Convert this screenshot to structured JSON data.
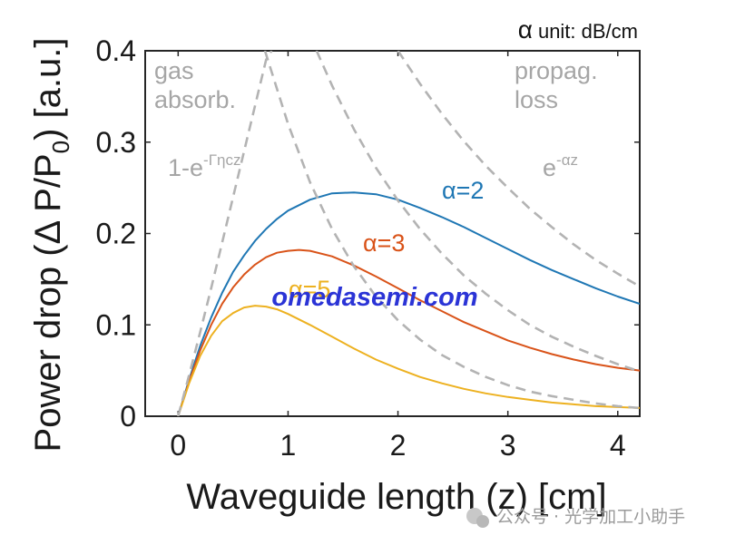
{
  "chart_data": {
    "type": "line",
    "title": "",
    "unit_note": {
      "symbol": "α",
      "text": "unit: dB/cm"
    },
    "xlabel": "Waveguide length (z) [cm]",
    "ylabel": {
      "prefix": "Power drop (Δ P/P",
      "sub": "0",
      "suffix": ") [a.u.]"
    },
    "xlim": [
      -0.3,
      4.2
    ],
    "ylim": [
      0,
      0.4
    ],
    "xticks": [
      0,
      1,
      2,
      3,
      4
    ],
    "yticks": [
      0,
      0.1,
      0.2,
      0.3,
      0.4
    ],
    "ytick_labels": [
      "0",
      "0.1",
      "0.2",
      "0.3",
      "0.4"
    ],
    "colors": {
      "a2": "#1f77b4",
      "a3": "#d95319",
      "a5": "#edb120",
      "dash": "#b3b3b3",
      "annotation": "#a6a6a6"
    },
    "series": [
      {
        "name": "α=2",
        "color": "#1f77b4",
        "x": [
          0,
          0.1,
          0.2,
          0.3,
          0.4,
          0.5,
          0.6,
          0.7,
          0.8,
          0.9,
          1.0,
          1.2,
          1.4,
          1.6,
          1.8,
          2.0,
          2.2,
          2.4,
          2.6,
          2.8,
          3.0,
          3.2,
          3.4,
          3.6,
          3.8,
          4.0,
          4.2
        ],
        "y": [
          0,
          0.04,
          0.077,
          0.108,
          0.135,
          0.158,
          0.176,
          0.192,
          0.205,
          0.216,
          0.225,
          0.237,
          0.244,
          0.245,
          0.243,
          0.237,
          0.228,
          0.218,
          0.207,
          0.195,
          0.183,
          0.171,
          0.16,
          0.15,
          0.14,
          0.131,
          0.123
        ]
      },
      {
        "name": "α=3",
        "color": "#d95319",
        "x": [
          0,
          0.1,
          0.2,
          0.3,
          0.4,
          0.5,
          0.6,
          0.7,
          0.8,
          0.9,
          1.0,
          1.1,
          1.2,
          1.4,
          1.6,
          1.8,
          2.0,
          2.2,
          2.4,
          2.6,
          2.8,
          3.0,
          3.2,
          3.4,
          3.6,
          3.8,
          4.0,
          4.2
        ],
        "y": [
          0,
          0.038,
          0.072,
          0.1,
          0.123,
          0.141,
          0.155,
          0.166,
          0.174,
          0.179,
          0.181,
          0.182,
          0.181,
          0.175,
          0.165,
          0.153,
          0.14,
          0.127,
          0.115,
          0.103,
          0.093,
          0.083,
          0.075,
          0.068,
          0.062,
          0.057,
          0.053,
          0.05
        ]
      },
      {
        "name": "α=5",
        "color": "#edb120",
        "x": [
          0,
          0.1,
          0.2,
          0.3,
          0.4,
          0.5,
          0.6,
          0.7,
          0.8,
          0.9,
          1.0,
          1.2,
          1.4,
          1.6,
          1.8,
          2.0,
          2.2,
          2.4,
          2.6,
          2.8,
          3.0,
          3.2,
          3.4,
          3.6,
          3.8,
          4.0,
          4.2
        ],
        "y": [
          0,
          0.036,
          0.066,
          0.088,
          0.104,
          0.113,
          0.119,
          0.121,
          0.12,
          0.117,
          0.112,
          0.1,
          0.087,
          0.074,
          0.062,
          0.052,
          0.043,
          0.036,
          0.03,
          0.025,
          0.021,
          0.018,
          0.015,
          0.013,
          0.011,
          0.01,
          0.009
        ]
      },
      {
        "name": "1-e^(-Γηcz)",
        "color": "#b3b3b3",
        "dashed": true,
        "x": [
          0,
          0.1,
          0.2,
          0.3,
          0.4,
          0.5,
          0.6,
          0.7,
          0.8,
          0.85
        ],
        "y": [
          0,
          0.045,
          0.092,
          0.14,
          0.19,
          0.24,
          0.29,
          0.34,
          0.39,
          0.4
        ]
      },
      {
        "name": "e^(-αz) α=5",
        "color": "#b3b3b3",
        "dashed": true,
        "x": [
          0.79,
          1.0,
          1.2,
          1.4,
          1.6,
          1.8,
          2.0,
          2.2,
          2.4,
          2.6,
          2.8,
          3.0,
          3.2,
          3.4,
          3.6,
          3.8,
          4.0,
          4.2
        ],
        "y": [
          0.4,
          0.32,
          0.256,
          0.205,
          0.164,
          0.131,
          0.105,
          0.084,
          0.067,
          0.054,
          0.043,
          0.034,
          0.027,
          0.022,
          0.018,
          0.014,
          0.011,
          0.009
        ]
      },
      {
        "name": "e^(-αz) α=3",
        "color": "#b3b3b3",
        "dashed": true,
        "x": [
          1.26,
          1.4,
          1.6,
          1.8,
          2.0,
          2.2,
          2.4,
          2.6,
          2.8,
          3.0,
          3.2,
          3.4,
          3.6,
          3.8,
          4.0,
          4.2
        ],
        "y": [
          0.4,
          0.362,
          0.314,
          0.272,
          0.236,
          0.205,
          0.178,
          0.154,
          0.134,
          0.116,
          0.1,
          0.087,
          0.076,
          0.066,
          0.057,
          0.049
        ]
      },
      {
        "name": "e^(-αz) α=2",
        "color": "#b3b3b3",
        "dashed": true,
        "x": [
          2.0,
          2.2,
          2.4,
          2.6,
          2.8,
          3.0,
          3.2,
          3.4,
          3.6,
          3.8,
          4.0,
          4.2
        ],
        "y": [
          0.4,
          0.364,
          0.331,
          0.301,
          0.274,
          0.25,
          0.227,
          0.207,
          0.188,
          0.171,
          0.156,
          0.142
        ]
      }
    ],
    "annotations": [
      {
        "id": "gas",
        "lines": [
          "gas",
          "absorb."
        ],
        "color": "#a6a6a6"
      },
      {
        "id": "prop",
        "lines": [
          "propag.",
          "loss"
        ],
        "color": "#a6a6a6"
      },
      {
        "id": "formula1",
        "base": "1-e",
        "sup": "-Γηcz",
        "color": "#a6a6a6"
      },
      {
        "id": "formula2",
        "base": "e",
        "sup": "-αz",
        "color": "#a6a6a6"
      },
      {
        "id": "lab_a2",
        "text": "α=2",
        "color": "#1f77b4"
      },
      {
        "id": "lab_a3",
        "text": "α=3",
        "color": "#d95319"
      },
      {
        "id": "lab_a5",
        "text": "α=5",
        "color": "#edb120"
      }
    ]
  },
  "watermark": "omedasemi.com",
  "source_note": "公众号 · 光学加工小助手"
}
